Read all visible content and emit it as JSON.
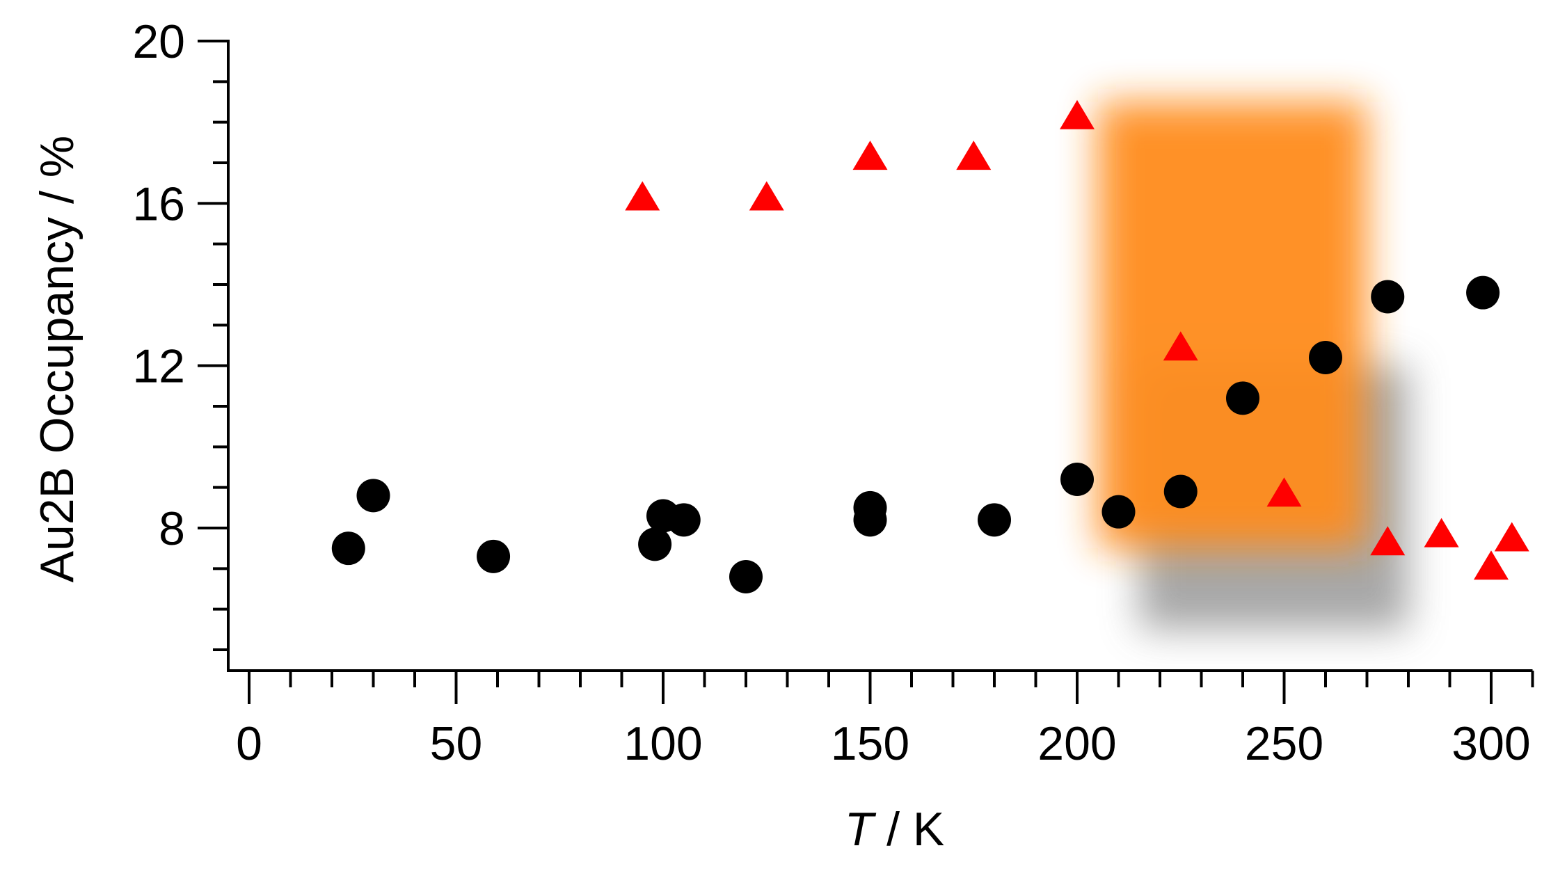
{
  "chart_data": {
    "type": "scatter",
    "title": "",
    "xlabel": {
      "italic": "T",
      "rest": " / K"
    },
    "ylabel": "Au2B Occupancy / %",
    "xlim": [
      -5,
      310
    ],
    "ylim": [
      4.5,
      20
    ],
    "x_ticks": [
      0,
      50,
      100,
      150,
      200,
      250,
      300
    ],
    "y_ticks": [
      8,
      12,
      16,
      20
    ],
    "x_minor_step": 10,
    "y_minor_step": 1,
    "grid": false,
    "legend": "none",
    "highlight_regions": [
      {
        "name": "orange-glow",
        "x_range": [
          205,
          270
        ],
        "y_range": [
          7.5,
          18.5
        ],
        "color": "#ff8c1a"
      },
      {
        "name": "gray-glow",
        "x_range": [
          215,
          280
        ],
        "y_range": [
          5.5,
          12
        ],
        "color": "#8a8a8a"
      }
    ],
    "series": [
      {
        "marker": "circle",
        "color": "#000000",
        "points": [
          [
            24,
            7.5
          ],
          [
            30,
            8.8
          ],
          [
            59,
            7.3
          ],
          [
            98,
            7.6
          ],
          [
            100,
            8.3
          ],
          [
            105,
            8.2
          ],
          [
            120,
            6.8
          ],
          [
            150,
            8.5
          ],
          [
            150,
            8.2
          ],
          [
            180,
            8.2
          ],
          [
            200,
            9.2
          ],
          [
            210,
            8.4
          ],
          [
            225,
            8.9
          ],
          [
            240,
            11.2
          ],
          [
            260,
            12.2
          ],
          [
            275,
            13.7
          ],
          [
            298,
            13.8
          ]
        ]
      },
      {
        "marker": "triangle",
        "color": "#ff0000",
        "points": [
          [
            95,
            16.1
          ],
          [
            125,
            16.1
          ],
          [
            150,
            17.1
          ],
          [
            175,
            17.1
          ],
          [
            200,
            18.1
          ],
          [
            225,
            12.4
          ],
          [
            250,
            8.8
          ],
          [
            275,
            7.6
          ],
          [
            288,
            7.8
          ],
          [
            300,
            7.0
          ],
          [
            305,
            7.7
          ]
        ]
      }
    ]
  }
}
